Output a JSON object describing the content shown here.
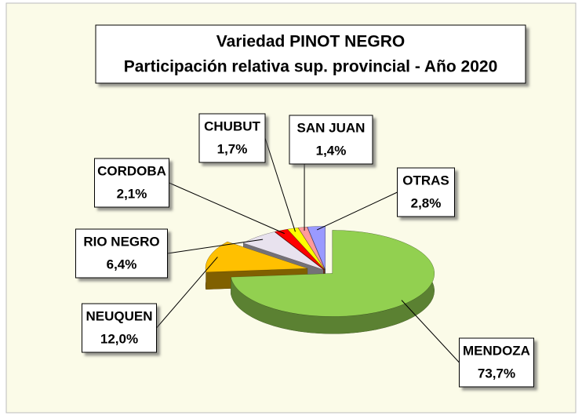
{
  "chart_data": {
    "type": "pie",
    "title": [
      "Variedad PINOT NEGRO",
      "Participación relativa sup. provincial - Año 2020"
    ],
    "categories": [
      "MENDOZA",
      "NEUQUEN",
      "RIO NEGRO",
      "CORDOBA",
      "CHUBUT",
      "SAN JUAN",
      "OTRAS"
    ],
    "values": [
      73.7,
      12.0,
      6.4,
      2.1,
      1.7,
      1.4,
      2.8
    ],
    "value_labels": [
      "73,7%",
      "12,0%",
      "6,4%",
      "2,1%",
      "1,7%",
      "1,4%",
      "2,8%"
    ],
    "colors": [
      "#92d050",
      "#ffc000",
      "#e8e2ee",
      "#ff0000",
      "#ffff00",
      "#ff9a9a",
      "#9a9aff"
    ]
  }
}
